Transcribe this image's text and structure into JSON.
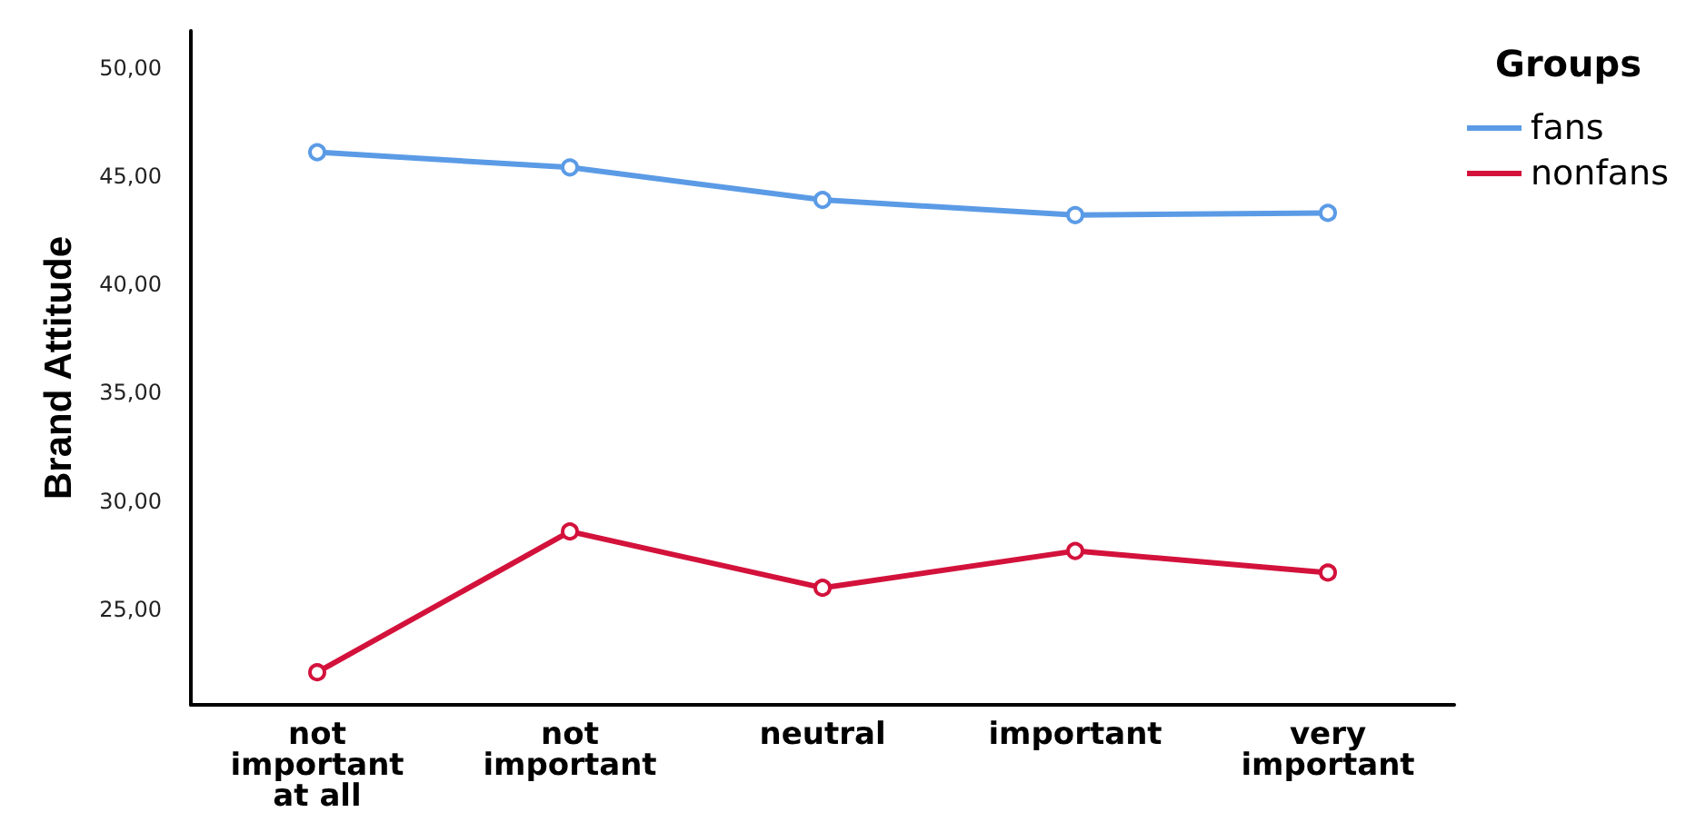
{
  "chart_data": {
    "type": "line",
    "ylabel": "Brand Attitude",
    "legend_title": "Groups",
    "categories": [
      "not\nimportant\nat all",
      "not\nimportant",
      "neutral",
      "important",
      "very\nimportant"
    ],
    "series": [
      {
        "name": "fans",
        "color": "#5b9be6",
        "values": [
          46.1,
          45.4,
          43.9,
          43.2,
          43.3
        ]
      },
      {
        "name": "nonfans",
        "color": "#d3123c",
        "values": [
          22.1,
          28.6,
          26.0,
          27.7,
          26.7
        ]
      }
    ],
    "ylim": [
      20.6,
      51.7
    ],
    "yticks": [
      {
        "value": 25,
        "label": "25,00"
      },
      {
        "value": 30,
        "label": "30,00"
      },
      {
        "value": 35,
        "label": "35,00"
      },
      {
        "value": 40,
        "label": "40,00"
      },
      {
        "value": 45,
        "label": "45,00"
      },
      {
        "value": 50,
        "label": "50,00"
      }
    ],
    "grid": false,
    "legend": "top right",
    "marker": "circle",
    "line_style": "solid"
  }
}
